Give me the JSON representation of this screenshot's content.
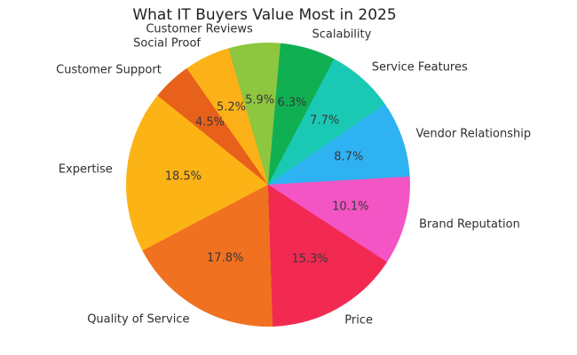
{
  "chart_data": {
    "type": "pie",
    "title": "What IT Buyers Value Most in 2025",
    "direction": "clockwise",
    "start_angle_deg_from_north": 5,
    "label_distance": 1.1,
    "pct_distance": 0.6,
    "legend": "none",
    "background": "#ffffff",
    "title_color": "#1f1f1f",
    "label_color": "#2e2e2e",
    "pct_color": "#383838",
    "slices": [
      {
        "label": "Scalability",
        "value": 6.3,
        "pct_label": "6.3%",
        "color": "#10b052"
      },
      {
        "label": "Service Features",
        "value": 7.7,
        "pct_label": "7.7%",
        "color": "#1ac9b4"
      },
      {
        "label": "Vendor Relationship",
        "value": 8.7,
        "pct_label": "8.7%",
        "color": "#2eb2f2"
      },
      {
        "label": "Brand Reputation",
        "value": 10.1,
        "pct_label": "10.1%",
        "color": "#f355c4"
      },
      {
        "label": "Price",
        "value": 15.3,
        "pct_label": "15.3%",
        "color": "#f22a52"
      },
      {
        "label": "Quality of Service",
        "value": 17.8,
        "pct_label": "17.8%",
        "color": "#f0711f"
      },
      {
        "label": "Expertise",
        "value": 18.5,
        "pct_label": "18.5%",
        "color": "#fcb316"
      },
      {
        "label": "Customer Support",
        "value": 4.5,
        "pct_label": "4.5%",
        "color": "#e8611b"
      },
      {
        "label": "Social Proof",
        "value": 5.2,
        "pct_label": "5.2%",
        "color": "#fbb117"
      },
      {
        "label": "Customer Reviews",
        "value": 5.9,
        "pct_label": "5.9%",
        "color": "#8dc63f"
      }
    ]
  }
}
